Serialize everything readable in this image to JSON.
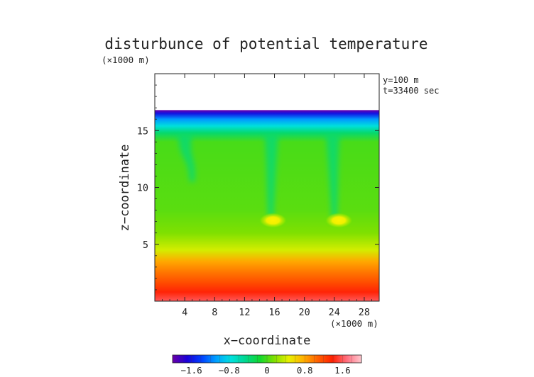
{
  "chart_data": {
    "type": "heatmap",
    "title": "disturbunce of potential temperature",
    "xlabel": "x−coordinate",
    "ylabel": "z−coordinate",
    "x_unit": "(×1000 m)",
    "y_unit": "(×1000 m)",
    "annotations": [
      "y=100 m",
      "t=33400 sec"
    ],
    "xlim": [
      0,
      30
    ],
    "ylim": [
      0,
      20
    ],
    "x_ticks": [
      {
        "value": 4,
        "label": "4"
      },
      {
        "value": 8,
        "label": "8"
      },
      {
        "value": 12,
        "label": "12"
      },
      {
        "value": 16,
        "label": "16"
      },
      {
        "value": 20,
        "label": "20"
      },
      {
        "value": 24,
        "label": "24"
      },
      {
        "value": 28,
        "label": "28"
      }
    ],
    "y_ticks": [
      {
        "value": 5,
        "label": "5"
      },
      {
        "value": 10,
        "label": "10"
      },
      {
        "value": 15,
        "label": "15"
      }
    ],
    "data_top_z": 16.8,
    "colorbar": {
      "range": [
        -2.0,
        2.0
      ],
      "ticks": [
        {
          "value": -1.6,
          "label": "−1.6"
        },
        {
          "value": -0.8,
          "label": "−0.8"
        },
        {
          "value": 0,
          "label": "0"
        },
        {
          "value": 0.8,
          "label": "0.8"
        },
        {
          "value": 1.6,
          "label": "1.6"
        }
      ],
      "colors": [
        "#6a00a8",
        "#1a00d8",
        "#0040ff",
        "#00a0ff",
        "#00e0e0",
        "#00d890",
        "#10d830",
        "#80e000",
        "#e8f000",
        "#ffb000",
        "#ff6000",
        "#ff2000",
        "#ff7080",
        "#ffc8d0"
      ]
    },
    "field_rows": [
      {
        "z": 16.8,
        "value": -2.0
      },
      {
        "z": 16.5,
        "value": -1.6
      },
      {
        "z": 16.0,
        "value": -1.1
      },
      {
        "z": 15.4,
        "value": -0.75
      },
      {
        "z": 14.8,
        "value": -0.35
      },
      {
        "z": 14.0,
        "value": 0.0
      },
      {
        "z": 8.0,
        "value": 0.05
      },
      {
        "z": 6.0,
        "value": 0.15
      },
      {
        "z": 4.5,
        "value": 0.4
      },
      {
        "z": 3.5,
        "value": 0.8
      },
      {
        "z": 2.5,
        "value": 1.0
      },
      {
        "z": 1.5,
        "value": 1.2
      },
      {
        "z": 0.8,
        "value": 1.4
      },
      {
        "z": 0.0,
        "value": 1.6
      }
    ],
    "plumes": [
      {
        "x_top": 4.0,
        "x_bottom": 5.0,
        "z_bottom": 10.5,
        "value": -0.4
      },
      {
        "x_top": 15.6,
        "x_bottom": 15.5,
        "z_bottom": 7.0,
        "value": -0.4
      },
      {
        "x_top": 23.8,
        "x_bottom": 24.0,
        "z_bottom": 7.0,
        "value": -0.4
      }
    ],
    "hot_spots": [
      {
        "x": 15.8,
        "z": 7.1,
        "value": 0.9
      },
      {
        "x": 24.6,
        "z": 7.1,
        "value": 0.9
      }
    ]
  }
}
